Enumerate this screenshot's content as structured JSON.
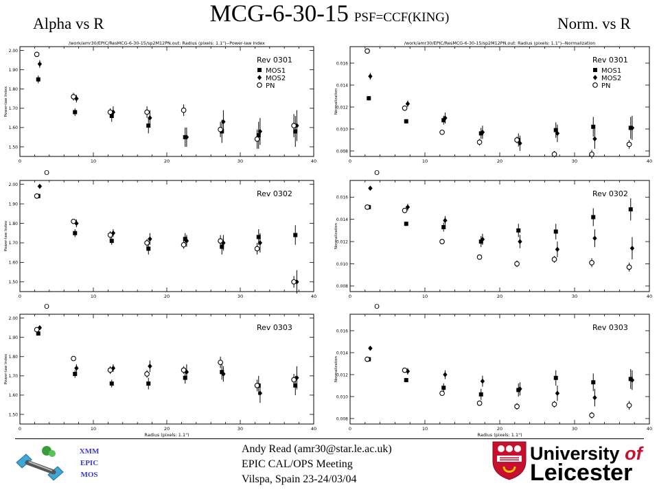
{
  "slide": {
    "title": "MCG-6-30-15",
    "subtitle": "PSF=CCF(KING)",
    "left_header": "Alpha vs R",
    "right_header": "Norm. vs R"
  },
  "footer": {
    "author": "Andy Read (amr30@star.le.ac.uk)",
    "meeting": "EPIC CAL/OPS Meeting",
    "venue": "Vilspa, Spain 23-24/03/04",
    "badge_lines": [
      "XMM",
      "EPIC",
      "MOS"
    ],
    "university_line1": "University",
    "university_of": "of",
    "university_line2": "Leicester"
  },
  "colors": {
    "text": "#000000",
    "badge": "#3b3bd0",
    "uni_red": "#c8102e"
  },
  "chart_data": [
    {
      "type": "scatter",
      "id": "alpha-rev0301",
      "title": "/work/amr30/EPIC/ResMCG-6-30-15/sp2M12PN.out: Radius (pixels: 1.1\")--Power-law Index",
      "ylabel": "Power-law Index",
      "xlabel": "",
      "panel_label": "Rev 0301",
      "corner_mark": "",
      "xlim": [
        0,
        40
      ],
      "ylim": [
        1.45,
        2.02
      ],
      "xticks": [
        0,
        10,
        20,
        30,
        40
      ],
      "yticks": [
        1.5,
        1.6,
        1.7,
        1.8,
        1.9,
        2.0
      ],
      "ytick_labels": [
        "1.50",
        "1.60",
        "1.70",
        "1.80",
        "1.90",
        "2.00"
      ],
      "legend": [
        "MOS1",
        "MOS2",
        "PN"
      ],
      "x": [
        2.5,
        7.5,
        12.5,
        17.5,
        22.5,
        27.5,
        32.5,
        37.5
      ],
      "series": [
        {
          "name": "MOS1",
          "marker": "square",
          "values": [
            1.85,
            1.68,
            1.66,
            1.61,
            1.55,
            1.58,
            1.56,
            1.58
          ],
          "err": [
            0.02,
            0.02,
            0.03,
            0.04,
            0.05,
            0.06,
            0.07,
            0.08
          ]
        },
        {
          "name": "MOS2",
          "marker": "diamond",
          "values": [
            1.93,
            1.75,
            1.68,
            1.65,
            1.55,
            1.63,
            1.58,
            1.61
          ],
          "err": [
            0.02,
            0.02,
            0.03,
            0.04,
            0.05,
            0.06,
            0.07,
            0.08
          ]
        },
        {
          "name": "PN",
          "marker": "circle",
          "values": [
            1.98,
            1.76,
            1.68,
            1.68,
            1.69,
            1.59,
            1.54,
            1.61
          ],
          "err": [
            0.01,
            0.02,
            0.02,
            0.03,
            0.03,
            0.04,
            0.05,
            0.06
          ]
        }
      ]
    },
    {
      "type": "scatter",
      "id": "norm-rev0301",
      "title": "/work/amr30/EPIC/ResMCG-6-30-15/sp2M12PN.out: Radius (pixels: 1.1\")--Normalization",
      "ylabel": "Normalization",
      "xlabel": "",
      "panel_label": "Rev 0301",
      "corner_mark": "",
      "xlim": [
        0,
        40
      ],
      "ylim": [
        0.0075,
        0.0175
      ],
      "xticks": [
        0,
        10,
        20,
        30,
        40
      ],
      "yticks": [
        0.008,
        0.01,
        0.012,
        0.014,
        0.016
      ],
      "ytick_labels": [
        "0.008",
        "0.010",
        "0.012",
        "0.014",
        "0.016"
      ],
      "legend": [
        "MOS1",
        "MOS2",
        "PN"
      ],
      "x": [
        2.5,
        7.5,
        12.5,
        17.5,
        22.5,
        27.5,
        32.5,
        37.5
      ],
      "series": [
        {
          "name": "MOS1",
          "marker": "square",
          "values": [
            0.0128,
            0.0107,
            0.0108,
            0.0096,
            0.009,
            0.0099,
            0.0102,
            0.0101
          ],
          "err": [
            0.0002,
            0.0002,
            0.0004,
            0.0005,
            0.0006,
            0.0007,
            0.0009,
            0.001
          ]
        },
        {
          "name": "MOS2",
          "marker": "diamond",
          "values": [
            0.0148,
            0.0123,
            0.011,
            0.0097,
            0.0087,
            0.0096,
            0.0091,
            0.0101
          ],
          "err": [
            0.0003,
            0.0003,
            0.0005,
            0.0006,
            0.0007,
            0.0008,
            0.0009,
            0.0011
          ]
        },
        {
          "name": "PN",
          "marker": "circle",
          "values": [
            0.0171,
            0.0119,
            0.0097,
            0.0088,
            0.009,
            0.0077,
            0.0077,
            0.0086
          ],
          "err": [
            0.0002,
            0.0002,
            0.0002,
            0.0003,
            0.0003,
            0.0003,
            0.0004,
            0.0004
          ]
        }
      ]
    },
    {
      "type": "scatter",
      "id": "alpha-rev0302",
      "title": "",
      "ylabel": "Power-law Index",
      "xlabel": "",
      "panel_label": "Rev 0302",
      "corner_mark": "O",
      "xlim": [
        0,
        40
      ],
      "ylim": [
        1.45,
        2.02
      ],
      "xticks": [
        0,
        10,
        20,
        30,
        40
      ],
      "yticks": [
        1.5,
        1.6,
        1.7,
        1.8,
        1.9,
        2.0
      ],
      "ytick_labels": [
        "1.50",
        "1.60",
        "1.70",
        "1.80",
        "1.90",
        "2.00"
      ],
      "legend": [],
      "x": [
        2.5,
        7.5,
        12.5,
        17.5,
        22.5,
        27.5,
        32.5,
        37.5
      ],
      "series": [
        {
          "name": "MOS1",
          "marker": "square",
          "values": [
            1.94,
            1.75,
            1.71,
            1.67,
            1.72,
            1.68,
            1.73,
            1.74
          ],
          "err": [
            0.01,
            0.02,
            0.02,
            0.03,
            0.03,
            0.04,
            0.04,
            0.05
          ]
        },
        {
          "name": "MOS2",
          "marker": "diamond",
          "values": [
            1.99,
            1.8,
            1.75,
            1.72,
            1.71,
            1.7,
            1.7,
            1.5
          ],
          "err": [
            0.01,
            0.02,
            0.02,
            0.03,
            0.03,
            0.04,
            0.05,
            0.06
          ]
        },
        {
          "name": "PN",
          "marker": "circle",
          "values": [
            1.94,
            1.81,
            1.74,
            1.7,
            1.69,
            1.71,
            1.67,
            1.5
          ],
          "err": [
            0.01,
            0.01,
            0.02,
            0.02,
            0.02,
            0.03,
            0.03,
            0.03
          ]
        }
      ]
    },
    {
      "type": "scatter",
      "id": "norm-rev0302",
      "title": "",
      "ylabel": "Normalization",
      "xlabel": "",
      "panel_label": "Rev 0302",
      "corner_mark": "O",
      "xlim": [
        0,
        40
      ],
      "ylim": [
        0.0075,
        0.0175
      ],
      "xticks": [
        0,
        10,
        20,
        30,
        40
      ],
      "yticks": [
        0.008,
        0.01,
        0.012,
        0.014,
        0.016
      ],
      "ytick_labels": [
        "0.008",
        "0.010",
        "0.012",
        "0.014",
        "0.016"
      ],
      "legend": [],
      "x": [
        2.5,
        7.5,
        12.5,
        17.5,
        22.5,
        27.5,
        32.5,
        37.5
      ],
      "series": [
        {
          "name": "MOS1",
          "marker": "square",
          "values": [
            0.0151,
            0.0136,
            0.0133,
            0.012,
            0.013,
            0.0129,
            0.0142,
            0.0149
          ],
          "err": [
            0.0002,
            0.0002,
            0.0004,
            0.0005,
            0.0006,
            0.0007,
            0.0008,
            0.001
          ]
        },
        {
          "name": "MOS2",
          "marker": "diamond",
          "values": [
            0.0168,
            0.0151,
            0.0139,
            0.0122,
            0.012,
            0.0113,
            0.0123,
            0.0114
          ],
          "err": [
            0.0002,
            0.0003,
            0.0004,
            0.0005,
            0.0006,
            0.0007,
            0.0008,
            0.001
          ]
        },
        {
          "name": "PN",
          "marker": "circle",
          "values": [
            0.0151,
            0.0148,
            0.012,
            0.0106,
            0.01,
            0.0104,
            0.0101,
            0.0097
          ],
          "err": [
            0.0002,
            0.0002,
            0.0002,
            0.0002,
            0.0003,
            0.0003,
            0.0004,
            0.0004
          ]
        }
      ]
    },
    {
      "type": "scatter",
      "id": "alpha-rev0303",
      "title": "",
      "ylabel": "Power-law Index",
      "xlabel": "Radius (pixels: 1.1\")",
      "panel_label": "Rev 0303",
      "corner_mark": "O",
      "xlim": [
        0,
        40
      ],
      "ylim": [
        1.45,
        2.02
      ],
      "xticks": [
        0,
        10,
        20,
        30,
        40
      ],
      "yticks": [
        1.5,
        1.6,
        1.7,
        1.8,
        1.9,
        2.0
      ],
      "ytick_labels": [
        "1.50",
        "1.60",
        "1.70",
        "1.80",
        "1.90",
        "2.00"
      ],
      "legend": [],
      "x": [
        2.5,
        7.5,
        12.5,
        17.5,
        22.5,
        27.5,
        32.5,
        37.5
      ],
      "series": [
        {
          "name": "MOS1",
          "marker": "square",
          "values": [
            1.92,
            1.71,
            1.66,
            1.66,
            1.69,
            1.72,
            1.65,
            1.65
          ],
          "err": [
            0.01,
            0.02,
            0.02,
            0.03,
            0.03,
            0.04,
            0.05,
            0.05
          ]
        },
        {
          "name": "MOS2",
          "marker": "diamond",
          "values": [
            1.95,
            1.74,
            1.74,
            1.75,
            1.72,
            1.71,
            1.61,
            1.69
          ],
          "err": [
            0.01,
            0.02,
            0.02,
            0.03,
            0.04,
            0.04,
            0.05,
            0.06
          ]
        },
        {
          "name": "PN",
          "marker": "circle",
          "values": [
            1.94,
            1.79,
            1.73,
            1.71,
            1.73,
            1.77,
            1.65,
            1.68
          ],
          "err": [
            0.01,
            0.01,
            0.02,
            0.02,
            0.02,
            0.03,
            0.03,
            0.03
          ]
        }
      ]
    },
    {
      "type": "scatter",
      "id": "norm-rev0303",
      "title": "",
      "ylabel": "Normalization",
      "xlabel": "Radius (pixels: 1.1\")",
      "panel_label": "Rev 0303",
      "corner_mark": "O",
      "xlim": [
        0,
        40
      ],
      "ylim": [
        0.0075,
        0.0175
      ],
      "xticks": [
        0,
        10,
        20,
        30,
        40
      ],
      "yticks": [
        0.008,
        0.01,
        0.012,
        0.014,
        0.016
      ],
      "ytick_labels": [
        "0.008",
        "0.010",
        "0.012",
        "0.014",
        "0.016"
      ],
      "legend": [],
      "x": [
        2.5,
        7.5,
        12.5,
        17.5,
        22.5,
        27.5,
        32.5,
        37.5
      ],
      "series": [
        {
          "name": "MOS1",
          "marker": "square",
          "values": [
            0.0134,
            0.0115,
            0.0108,
            0.0102,
            0.0106,
            0.0117,
            0.0113,
            0.0116
          ],
          "err": [
            0.0002,
            0.0002,
            0.0004,
            0.0005,
            0.0006,
            0.0007,
            0.0008,
            0.0009
          ]
        },
        {
          "name": "MOS2",
          "marker": "diamond",
          "values": [
            0.0144,
            0.0123,
            0.012,
            0.0114,
            0.0107,
            0.0103,
            0.0099,
            0.0115
          ],
          "err": [
            0.0002,
            0.0003,
            0.0004,
            0.0005,
            0.0006,
            0.0007,
            0.0008,
            0.0009
          ]
        },
        {
          "name": "PN",
          "marker": "circle",
          "values": [
            0.0134,
            0.0124,
            0.0103,
            0.0094,
            0.0091,
            0.0093,
            0.0083,
            0.0092
          ],
          "err": [
            0.0002,
            0.0002,
            0.0002,
            0.0002,
            0.0003,
            0.0003,
            0.0003,
            0.0004
          ]
        }
      ]
    }
  ]
}
